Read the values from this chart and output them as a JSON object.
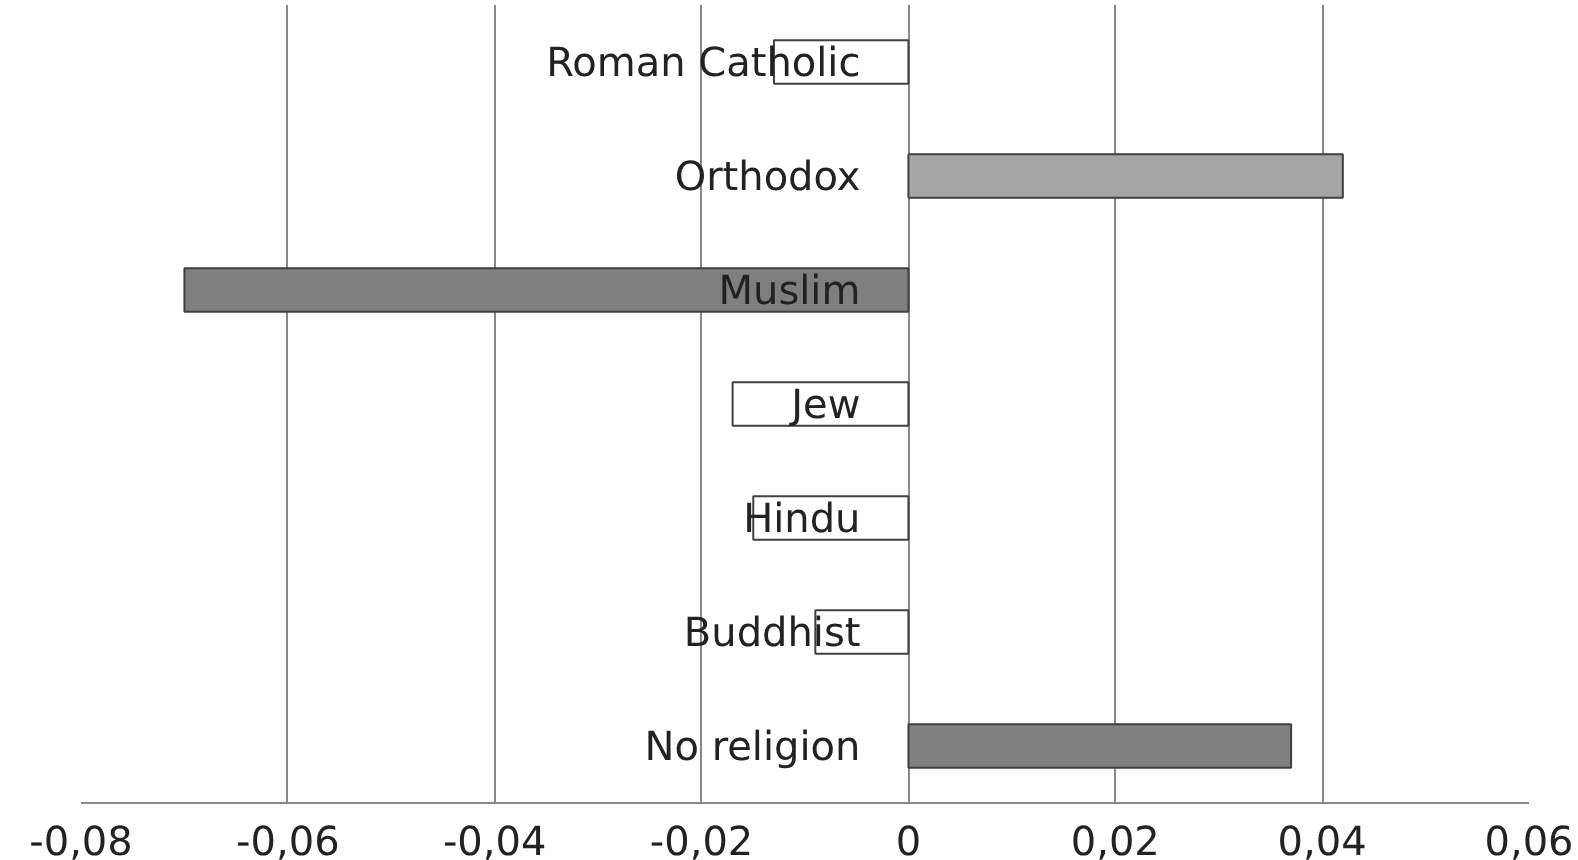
{
  "chart_data": {
    "type": "bar",
    "orientation": "horizontal",
    "categories": [
      "Roman Catholic",
      "Orthodox",
      "Muslim",
      "Jew",
      "Hindu",
      "Buddhist",
      "No religion"
    ],
    "values": [
      -0.013,
      0.042,
      -0.07,
      -0.017,
      -0.015,
      -0.009,
      0.037
    ],
    "colors": [
      "#ffffff",
      "#a6a6a6",
      "#7f7f7f",
      "#ffffff",
      "#ffffff",
      "#ffffff",
      "#7f7f7f"
    ],
    "xlim": [
      -0.08,
      0.06
    ],
    "xticks": [
      {
        "value": -0.08,
        "label": "-0,08"
      },
      {
        "value": -0.06,
        "label": "-0,06"
      },
      {
        "value": -0.04,
        "label": "-0,04"
      },
      {
        "value": -0.02,
        "label": "-0,02"
      },
      {
        "value": 0,
        "label": "0"
      },
      {
        "value": 0.02,
        "label": "0,02"
      },
      {
        "value": 0.04,
        "label": "0,04"
      },
      {
        "value": 0.06,
        "label": "0,06"
      }
    ],
    "grid": "x"
  }
}
